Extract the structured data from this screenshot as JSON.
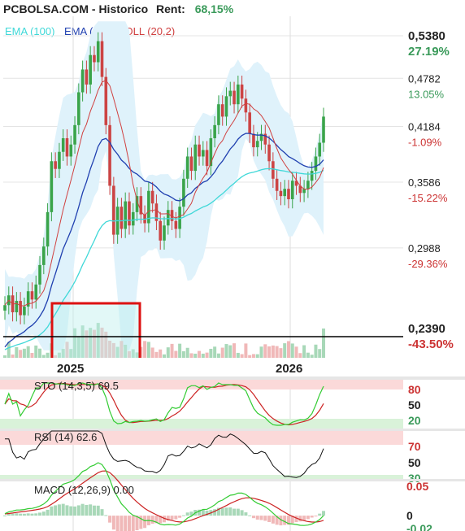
{
  "header": {
    "title": "PCBOLSA.COM - Historico",
    "rent_label": "Rent:",
    "rent_value": "68,15%"
  },
  "legend": {
    "ema100": "EMA (100)",
    "ema50": "EMA (50)",
    "boll": "BOLL (20,2)"
  },
  "colors": {
    "ema100": "#40d8d8",
    "ema50": "#2040b0",
    "boll": "#d04040",
    "band_fill": "#dff2fb",
    "up": "#3aa44a",
    "down": "#cc4444",
    "positive_text": "#3a9a5a",
    "negative_text": "#cc3333",
    "highlight": "#dd1111"
  },
  "price_axis": [
    {
      "price": "0,5380",
      "pct": "27.19%",
      "pct_class": "pos-bold"
    },
    {
      "price": "0,4782",
      "pct": "13.05%",
      "pct_class": "pos"
    },
    {
      "price": "0,4184",
      "pct": "-1.09%",
      "pct_class": "neg"
    },
    {
      "price": "0,3586",
      "pct": "-15.22%",
      "pct_class": "neg"
    },
    {
      "price": "0,2988",
      "pct": "-29.36%",
      "pct_class": "neg"
    },
    {
      "price": "0,2390",
      "pct": "-43.50%",
      "pct_class": "neg-bold"
    }
  ],
  "time_axis": [
    "2025",
    "2026"
  ],
  "indicators": {
    "sto": {
      "label": "STO (14,3,5) 69.5",
      "levels": [
        "80",
        "50",
        "20"
      ]
    },
    "rsi": {
      "label": "RSI (14) 62.6",
      "levels": [
        "70",
        "50",
        "30"
      ]
    },
    "macd": {
      "label": "MACD (12,26,9) 0.00",
      "levels": [
        "0.05",
        "0",
        "-0.02"
      ]
    }
  },
  "chart_data": {
    "type": "candlestick",
    "y_scale": "log",
    "ylim": [
      0.239,
      0.538
    ],
    "x_range": [
      "2024-09",
      "2026-02"
    ],
    "reference_price": 0.423,
    "closes": [
      0.255,
      0.262,
      0.25,
      0.258,
      0.248,
      0.254,
      0.265,
      0.259,
      0.27,
      0.285,
      0.3,
      0.33,
      0.38,
      0.372,
      0.39,
      0.405,
      0.385,
      0.398,
      0.42,
      0.46,
      0.49,
      0.47,
      0.51,
      0.5,
      0.53,
      0.48,
      0.42,
      0.355,
      0.31,
      0.335,
      0.315,
      0.34,
      0.318,
      0.33,
      0.345,
      0.328,
      0.32,
      0.35,
      0.338,
      0.322,
      0.305,
      0.318,
      0.332,
      0.322,
      0.315,
      0.335,
      0.362,
      0.385,
      0.37,
      0.398,
      0.385,
      0.392,
      0.375,
      0.405,
      0.42,
      0.445,
      0.43,
      0.455,
      0.462,
      0.445,
      0.47,
      0.452,
      0.435,
      0.41,
      0.395,
      0.402,
      0.41,
      0.398,
      0.38,
      0.362,
      0.35,
      0.345,
      0.352,
      0.342,
      0.36,
      0.355,
      0.348,
      0.352,
      0.36,
      0.37,
      0.385,
      0.4,
      0.43
    ],
    "indicator_ranges": {
      "sto": [
        0,
        100
      ],
      "rsi": [
        20,
        80
      ],
      "macd": [
        -0.02,
        0.05
      ]
    }
  }
}
